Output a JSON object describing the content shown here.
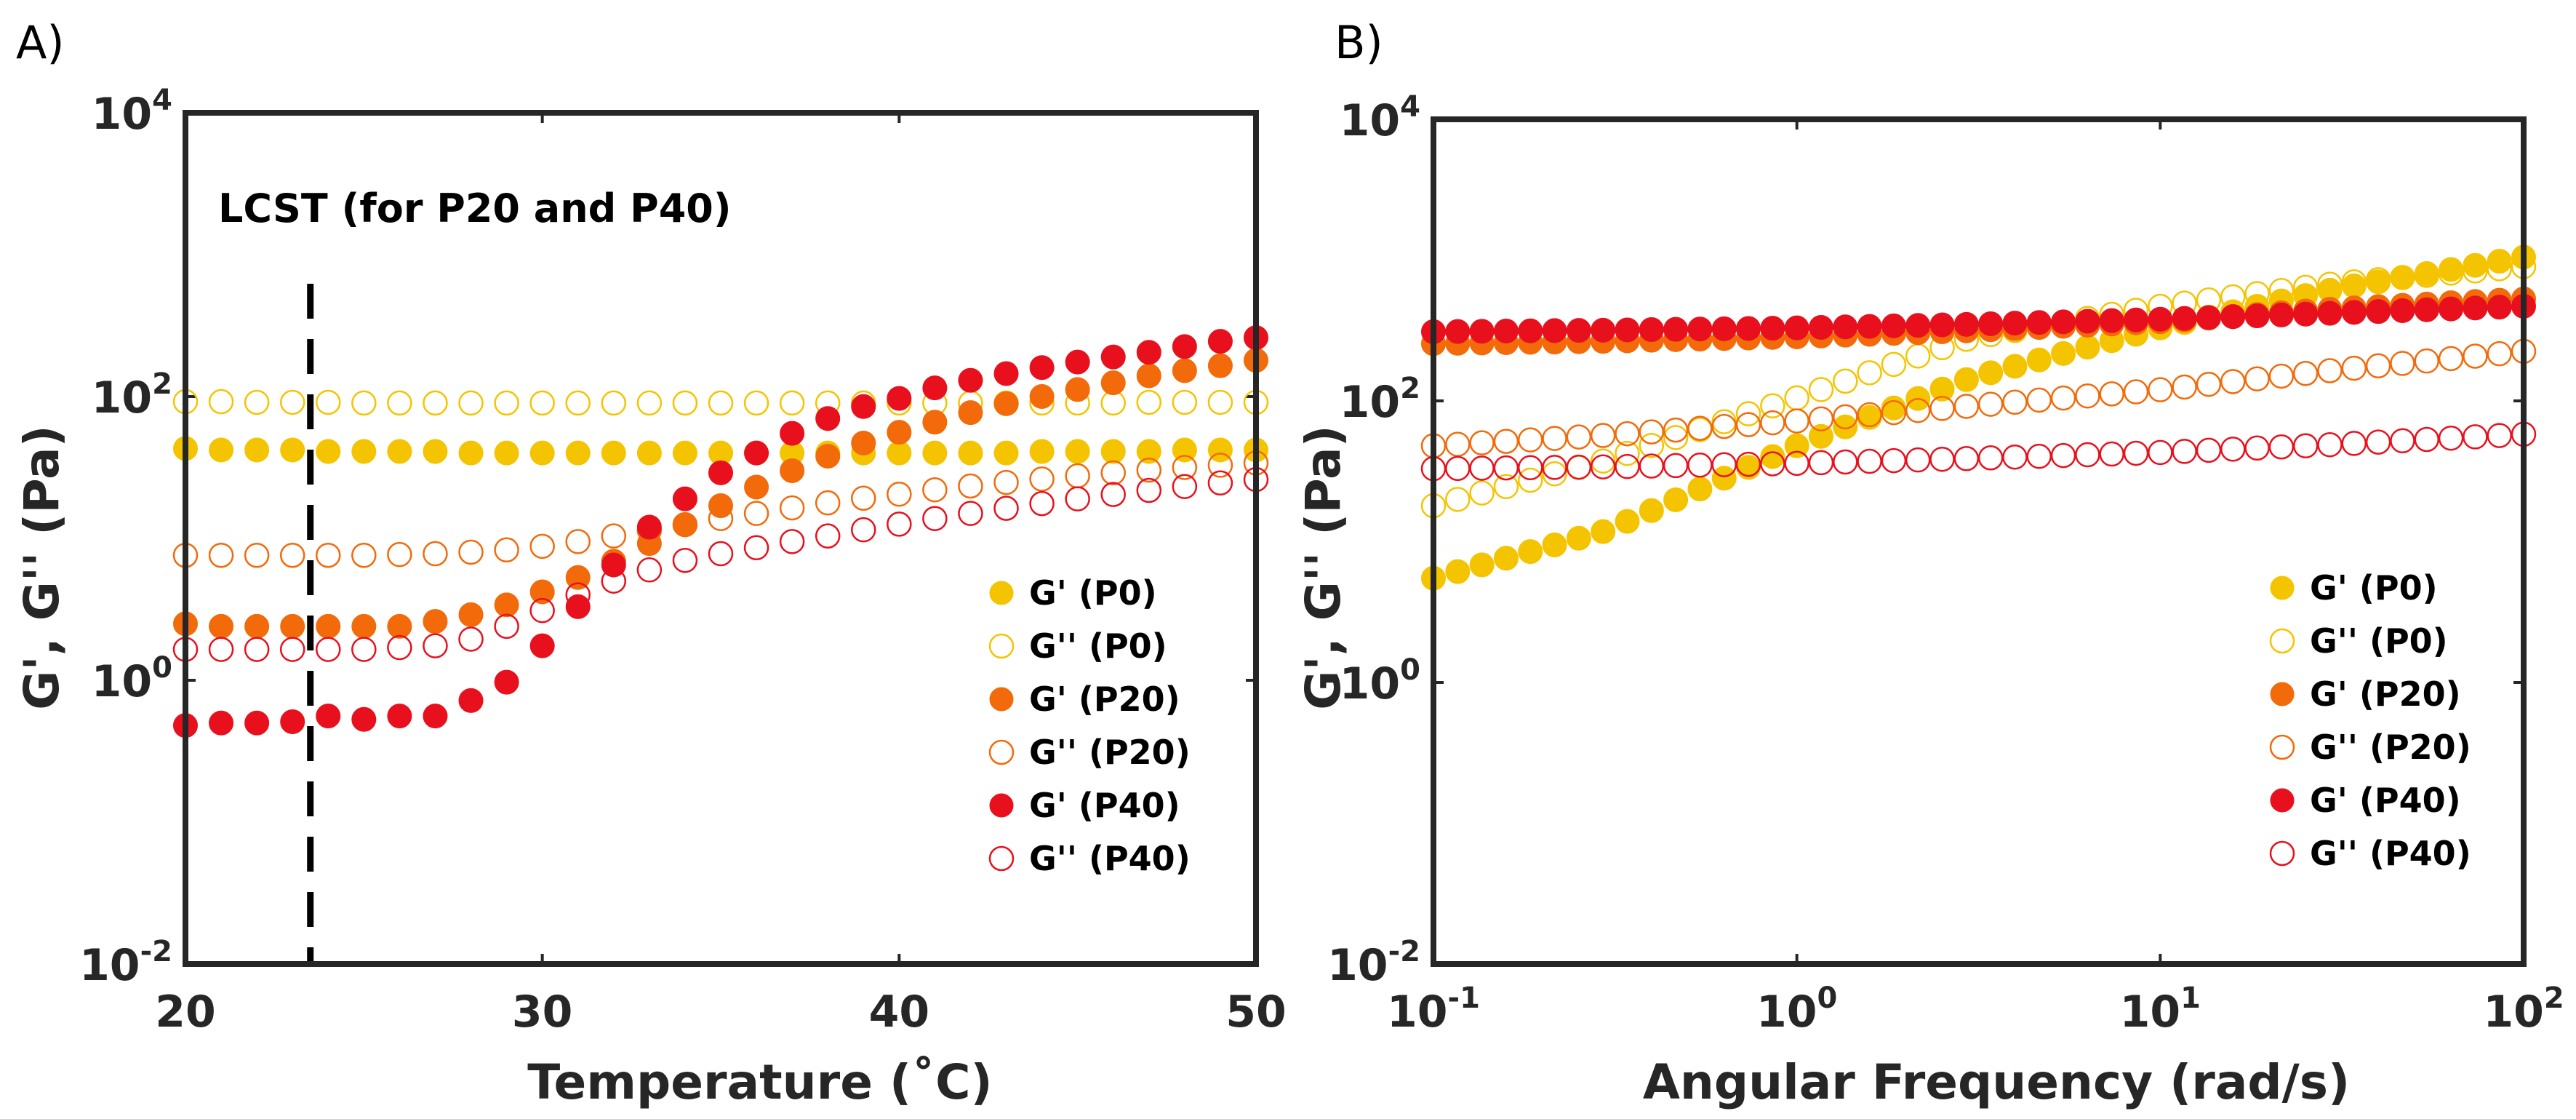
{
  "chart_data": [
    {
      "panel_label": "A)",
      "type": "scatter",
      "xscale": "linear",
      "yscale": "log",
      "xlabel": "Temperature (˚C)",
      "ylabel": "G', G'' (Pa)",
      "xlim": [
        20,
        50
      ],
      "ylim": [
        0.01,
        10000
      ],
      "xticks": [
        {
          "value": 20,
          "label": "20"
        },
        {
          "value": 30,
          "label": "30"
        },
        {
          "value": 40,
          "label": "40"
        },
        {
          "value": 50,
          "label": "50"
        }
      ],
      "yticks": [
        {
          "value": 0.01,
          "base": "10",
          "exp": "-2"
        },
        {
          "value": 1,
          "base": "10",
          "exp": "0"
        },
        {
          "value": 100,
          "base": "10",
          "exp": "2"
        },
        {
          "value": 10000,
          "base": "10",
          "exp": "4"
        }
      ],
      "annotation": {
        "text": "LCST (for P20 and P40)",
        "vline_x": 23.5
      },
      "legend_position": "lower-right",
      "series": [
        {
          "name": "G' (P0)",
          "color": "#F5C400",
          "filled": true,
          "x": [
            20,
            21,
            22,
            23,
            24,
            25,
            26,
            27,
            28,
            29,
            30,
            31,
            32,
            33,
            34,
            35,
            36,
            37,
            38,
            39,
            40,
            41,
            42,
            43,
            44,
            45,
            46,
            47,
            48,
            49,
            50
          ],
          "y": [
            43,
            42,
            42,
            42,
            41,
            41,
            41,
            41,
            40,
            40,
            40,
            40,
            40,
            40,
            40,
            40,
            40,
            40,
            40,
            40,
            40,
            40,
            40,
            40,
            41,
            41,
            41,
            41,
            42,
            42,
            42
          ]
        },
        {
          "name": "G'' (P0)",
          "color": "#F5C400",
          "filled": false,
          "x": [
            20,
            21,
            22,
            23,
            24,
            25,
            26,
            27,
            28,
            29,
            30,
            31,
            32,
            33,
            34,
            35,
            36,
            37,
            38,
            39,
            40,
            41,
            42,
            43,
            44,
            45,
            46,
            47,
            48,
            49,
            50
          ],
          "y": [
            92,
            92,
            91,
            91,
            91,
            90,
            90,
            90,
            90,
            90,
            90,
            90,
            90,
            90,
            90,
            90,
            90,
            90,
            90,
            90,
            90,
            90,
            90,
            90,
            90,
            90,
            90,
            91,
            91,
            91,
            91
          ]
        },
        {
          "name": "G' (P20)",
          "color": "#F26A0A",
          "filled": true,
          "x": [
            20,
            21,
            22,
            23,
            24,
            25,
            26,
            27,
            28,
            29,
            30,
            31,
            32,
            33,
            34,
            35,
            36,
            37,
            38,
            39,
            40,
            41,
            42,
            43,
            44,
            45,
            46,
            47,
            48,
            49,
            50
          ],
          "y": [
            2.5,
            2.4,
            2.4,
            2.4,
            2.4,
            2.4,
            2.4,
            2.6,
            2.9,
            3.4,
            4.2,
            5.3,
            6.9,
            9.2,
            12.5,
            17,
            23,
            30,
            38,
            47,
            56,
            66,
            77,
            89,
            100,
            112,
            125,
            140,
            152,
            165,
            180
          ]
        },
        {
          "name": "G'' (P20)",
          "color": "#F26A0A",
          "filled": false,
          "x": [
            20,
            21,
            22,
            23,
            24,
            25,
            26,
            27,
            28,
            29,
            30,
            31,
            32,
            33,
            34,
            35,
            36,
            37,
            38,
            39,
            40,
            41,
            42,
            43,
            44,
            45,
            46,
            47,
            48,
            49,
            50
          ],
          "y": [
            7.6,
            7.6,
            7.6,
            7.6,
            7.6,
            7.6,
            7.7,
            7.8,
            8.0,
            8.3,
            8.8,
            9.5,
            10.4,
            11.4,
            12.5,
            13.8,
            15,
            16.4,
            17.8,
            19.2,
            20.5,
            22,
            23.4,
            24.8,
            26.2,
            27.6,
            29,
            30.3,
            31.6,
            32.8,
            34
          ]
        },
        {
          "name": "G' (P40)",
          "color": "#E8101C",
          "filled": true,
          "x": [
            20,
            21,
            22,
            23,
            24,
            25,
            26,
            27,
            28,
            29,
            30,
            31,
            32,
            33,
            34,
            35,
            36,
            37,
            38,
            39,
            40,
            41,
            42,
            43,
            44,
            45,
            46,
            47,
            48,
            49,
            50
          ],
          "y": [
            0.48,
            0.5,
            0.5,
            0.51,
            0.56,
            0.53,
            0.56,
            0.56,
            0.72,
            0.97,
            1.75,
            3.3,
            6.5,
            12,
            19,
            29,
            40,
            55,
            70,
            85,
            97,
            115,
            130,
            145,
            160,
            175,
            190,
            205,
            225,
            245,
            260
          ]
        },
        {
          "name": "G'' (P40)",
          "color": "#E8101C",
          "filled": false,
          "x": [
            20,
            21,
            22,
            23,
            24,
            25,
            26,
            27,
            28,
            29,
            30,
            31,
            32,
            33,
            34,
            35,
            36,
            37,
            38,
            39,
            40,
            41,
            42,
            43,
            44,
            45,
            46,
            47,
            48,
            49,
            50
          ],
          "y": [
            1.65,
            1.65,
            1.65,
            1.65,
            1.65,
            1.65,
            1.7,
            1.75,
            1.95,
            2.4,
            3.1,
            4.0,
            5.0,
            6.0,
            7.0,
            7.8,
            8.6,
            9.5,
            10.4,
            11.5,
            12.6,
            13.8,
            15,
            16.3,
            17.6,
            19,
            20.4,
            21.8,
            23.2,
            24.6,
            26
          ]
        }
      ],
      "legend": [
        {
          "label": "G' (P0)",
          "color": "#F5C400",
          "filled": true
        },
        {
          "label": "G'' (P0)",
          "color": "#F5C400",
          "filled": false
        },
        {
          "label": "G' (P20)",
          "color": "#F26A0A",
          "filled": true
        },
        {
          "label": "G'' (P20)",
          "color": "#F26A0A",
          "filled": false
        },
        {
          "label": "G' (P40)",
          "color": "#E8101C",
          "filled": true
        },
        {
          "label": "G'' (P40)",
          "color": "#E8101C",
          "filled": false
        }
      ]
    },
    {
      "panel_label": "B)",
      "type": "scatter",
      "xscale": "log",
      "yscale": "log",
      "xlabel": "Angular Frequency (rad/s)",
      "ylabel": "G', G'' (Pa)",
      "xlim": [
        0.1,
        100
      ],
      "ylim": [
        0.01,
        10000
      ],
      "xticks": [
        {
          "value": 0.1,
          "base": "10",
          "exp": "-1"
        },
        {
          "value": 1,
          "base": "10",
          "exp": "0"
        },
        {
          "value": 10,
          "base": "10",
          "exp": "1"
        },
        {
          "value": 100,
          "base": "10",
          "exp": "2"
        }
      ],
      "yticks": [
        {
          "value": 0.01,
          "base": "10",
          "exp": "-2"
        },
        {
          "value": 1,
          "base": "10",
          "exp": "0"
        },
        {
          "value": 100,
          "base": "10",
          "exp": "2"
        },
        {
          "value": 10000,
          "base": "10",
          "exp": "4"
        }
      ],
      "points_per_series": 46,
      "legend_position": "lower-right",
      "series": [
        {
          "name": "G' (P0)",
          "color": "#F5C400",
          "filled": true,
          "log_anchors": [
            [
              0.1,
              5.5
            ],
            [
              0.3,
              12
            ],
            [
              1,
              48
            ],
            [
              3,
              145
            ],
            [
              10,
              330
            ],
            [
              30,
              620
            ],
            [
              100,
              1050
            ]
          ]
        },
        {
          "name": "G'' (P0)",
          "color": "#F5C400",
          "filled": false,
          "log_anchors": [
            [
              0.1,
              18
            ],
            [
              0.3,
              38
            ],
            [
              1,
              105
            ],
            [
              3,
              280
            ],
            [
              10,
              470
            ],
            [
              30,
              680
            ],
            [
              100,
              900
            ]
          ]
        },
        {
          "name": "G' (P20)",
          "color": "#F26A0A",
          "filled": true,
          "log_anchors": [
            [
              0.1,
              255
            ],
            [
              0.3,
              265
            ],
            [
              1,
              285
            ],
            [
              3,
              315
            ],
            [
              10,
              365
            ],
            [
              30,
              450
            ],
            [
              100,
              530
            ]
          ]
        },
        {
          "name": "G'' (P20)",
          "color": "#F26A0A",
          "filled": false,
          "log_anchors": [
            [
              0.1,
              48
            ],
            [
              0.3,
              57
            ],
            [
              1,
              72
            ],
            [
              3,
              92
            ],
            [
              10,
              120
            ],
            [
              30,
              165
            ],
            [
              100,
              225
            ]
          ]
        },
        {
          "name": "G' (P40)",
          "color": "#E8101C",
          "filled": true,
          "log_anchors": [
            [
              0.1,
              310
            ],
            [
              0.3,
              318
            ],
            [
              1,
              330
            ],
            [
              3,
              350
            ],
            [
              10,
              380
            ],
            [
              30,
              420
            ],
            [
              100,
              470
            ]
          ]
        },
        {
          "name": "G'' (P40)",
          "color": "#E8101C",
          "filled": false,
          "log_anchors": [
            [
              0.1,
              33
            ],
            [
              0.3,
              34
            ],
            [
              1,
              36
            ],
            [
              3,
              39
            ],
            [
              10,
              43
            ],
            [
              30,
              49
            ],
            [
              100,
              58
            ]
          ]
        }
      ],
      "legend": [
        {
          "label": "G' (P0)",
          "color": "#F5C400",
          "filled": true
        },
        {
          "label": "G'' (P0)",
          "color": "#F5C400",
          "filled": false
        },
        {
          "label": "G' (P20)",
          "color": "#F26A0A",
          "filled": true
        },
        {
          "label": "G'' (P20)",
          "color": "#F26A0A",
          "filled": false
        },
        {
          "label": "G' (P40)",
          "color": "#E8101C",
          "filled": true
        },
        {
          "label": "G'' (P40)",
          "color": "#E8101C",
          "filled": false
        }
      ]
    }
  ]
}
